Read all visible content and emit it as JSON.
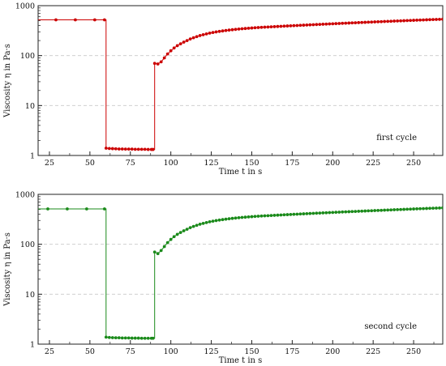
{
  "chart_data": [
    {
      "type": "line",
      "annotation": "first cycle",
      "xlabel": "Time t in s",
      "ylabel": "Viscosity η in Pa·s",
      "xlim": [
        18,
        268
      ],
      "ylim": [
        1,
        1000
      ],
      "yscale": "log",
      "grid": "horizontal dashed",
      "x_ticks": [
        "25",
        "50",
        "75",
        "100",
        "125",
        "150",
        "175",
        "200",
        "225",
        "250"
      ],
      "y_ticks": [
        "1",
        "10",
        "100",
        "1000"
      ],
      "color": "#cc0000",
      "series": [
        {
          "x": [
            18,
            29,
            41,
            53,
            59,
            60,
            62,
            64,
            66,
            68,
            70,
            72,
            74,
            76,
            78,
            80,
            82,
            84,
            86,
            88,
            89,
            90,
            92,
            94,
            96,
            98,
            100,
            102,
            104,
            106,
            108,
            110,
            112,
            114,
            116,
            118,
            120,
            122,
            124,
            126,
            128,
            130,
            132,
            134,
            136,
            138,
            140,
            142,
            144,
            146,
            148,
            150,
            152,
            154,
            156,
            158,
            160,
            162,
            164,
            166,
            168,
            170,
            172,
            174,
            176,
            178,
            180,
            182,
            184,
            186,
            188,
            190,
            192,
            194,
            196,
            198,
            200,
            202,
            204,
            206,
            208,
            210,
            212,
            214,
            216,
            218,
            220,
            222,
            224,
            226,
            228,
            230,
            232,
            234,
            236,
            238,
            240,
            242,
            244,
            246,
            248,
            250,
            252,
            254,
            256,
            258,
            260,
            262,
            264,
            266,
            268
          ],
          "y": [
            520,
            520,
            520,
            520,
            520,
            1.4,
            1.38,
            1.37,
            1.36,
            1.35,
            1.35,
            1.34,
            1.34,
            1.34,
            1.33,
            1.33,
            1.33,
            1.33,
            1.32,
            1.32,
            1.32,
            70,
            68,
            75,
            90,
            108,
            125,
            142,
            158,
            172,
            186,
            200,
            215,
            228,
            240,
            252,
            262,
            272,
            282,
            290,
            298,
            305,
            312,
            318,
            324,
            330,
            335,
            340,
            345,
            349,
            353,
            357,
            361,
            365,
            368,
            371,
            374,
            377,
            380,
            383,
            386,
            389,
            392,
            395,
            398,
            401,
            404,
            407,
            410,
            413,
            416,
            419,
            422,
            425,
            428,
            431,
            434,
            437,
            440,
            443,
            446,
            449,
            452,
            455,
            458,
            461,
            464,
            467,
            470,
            473,
            476,
            479,
            482,
            485,
            488,
            491,
            494,
            497,
            500,
            503,
            506,
            509,
            512,
            515,
            518,
            521,
            524,
            527,
            530,
            533,
            536
          ]
        }
      ]
    },
    {
      "type": "line",
      "annotation": "second cycle",
      "xlabel": "Time t in s",
      "ylabel": "Viscosity η in Pa·s",
      "xlim": [
        18,
        268
      ],
      "ylim": [
        1,
        1000
      ],
      "yscale": "log",
      "grid": "horizontal dashed",
      "x_ticks": [
        "25",
        "50",
        "75",
        "100",
        "125",
        "150",
        "175",
        "200",
        "225",
        "250"
      ],
      "y_ticks": [
        "1",
        "10",
        "100",
        "1000"
      ],
      "color": "#1a8a1a",
      "series": [
        {
          "x": [
            18,
            24,
            36,
            48,
            59,
            60,
            62,
            64,
            66,
            68,
            70,
            72,
            74,
            76,
            78,
            80,
            82,
            84,
            86,
            88,
            89,
            90,
            92,
            94,
            96,
            98,
            100,
            102,
            104,
            106,
            108,
            110,
            112,
            114,
            116,
            118,
            120,
            122,
            124,
            126,
            128,
            130,
            132,
            134,
            136,
            138,
            140,
            142,
            144,
            146,
            148,
            150,
            152,
            154,
            156,
            158,
            160,
            162,
            164,
            166,
            168,
            170,
            172,
            174,
            176,
            178,
            180,
            182,
            184,
            186,
            188,
            190,
            192,
            194,
            196,
            198,
            200,
            202,
            204,
            206,
            208,
            210,
            212,
            214,
            216,
            218,
            220,
            222,
            224,
            226,
            228,
            230,
            232,
            234,
            236,
            238,
            240,
            242,
            244,
            246,
            248,
            250,
            252,
            254,
            256,
            258,
            260,
            262,
            264,
            266,
            268
          ],
          "y": [
            510,
            510,
            510,
            510,
            510,
            1.38,
            1.36,
            1.35,
            1.34,
            1.34,
            1.33,
            1.33,
            1.33,
            1.32,
            1.32,
            1.32,
            1.31,
            1.31,
            1.31,
            1.31,
            1.31,
            70,
            65,
            75,
            90,
            108,
            125,
            142,
            158,
            172,
            186,
            200,
            215,
            228,
            240,
            252,
            262,
            272,
            282,
            290,
            298,
            305,
            312,
            318,
            324,
            330,
            335,
            340,
            345,
            349,
            353,
            357,
            361,
            365,
            368,
            371,
            374,
            377,
            380,
            383,
            386,
            389,
            392,
            395,
            398,
            401,
            404,
            407,
            410,
            413,
            416,
            419,
            422,
            425,
            428,
            431,
            434,
            437,
            440,
            443,
            446,
            449,
            452,
            455,
            458,
            461,
            464,
            467,
            470,
            473,
            476,
            479,
            482,
            485,
            488,
            491,
            494,
            497,
            500,
            503,
            506,
            509,
            512,
            515,
            518,
            521,
            524,
            527,
            530,
            533,
            536
          ]
        }
      ]
    }
  ]
}
